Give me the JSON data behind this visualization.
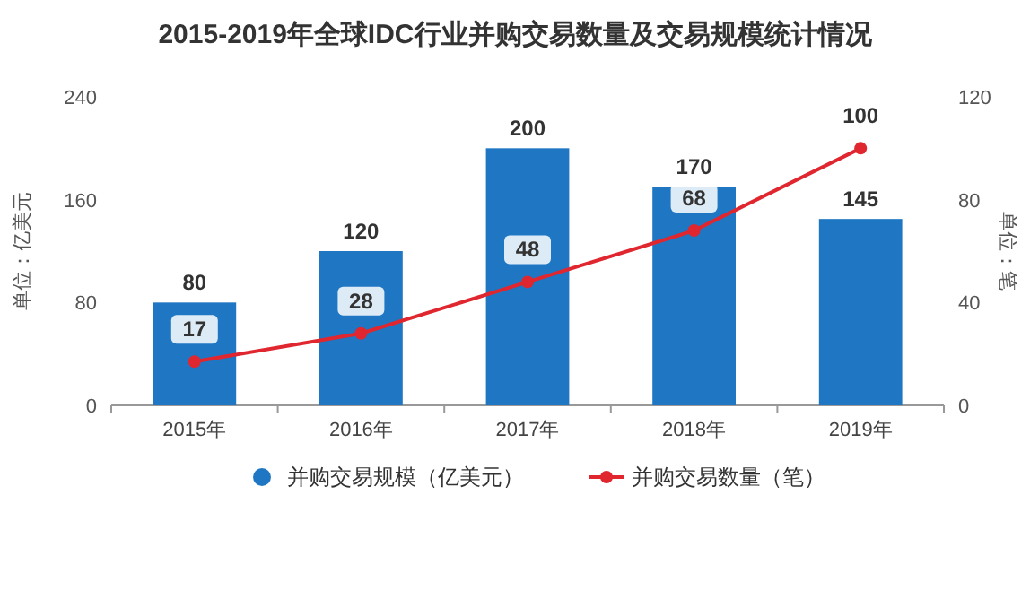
{
  "chart_data": {
    "type": "bar",
    "title": "2015-2019年全球IDC行业并购交易数量及交易规模统计情况",
    "categories": [
      "2015年",
      "2016年",
      "2017年",
      "2018年",
      "2019年"
    ],
    "series": [
      {
        "name": "并购交易规模（亿美元）",
        "color": "#1f77c4",
        "values": [
          80,
          120,
          200,
          170,
          145
        ]
      },
      {
        "name": "并购交易数量（笔）",
        "type": "line",
        "axis": "y2",
        "color": "#e0262e",
        "marker": "circle",
        "values": [
          17,
          28,
          48,
          68,
          100
        ]
      }
    ],
    "ylabel": "单位：亿美元",
    "y2label": "单位：笔",
    "ylim": [
      0,
      240
    ],
    "yticks": [
      0,
      80,
      160,
      240
    ],
    "y2lim": [
      0,
      120
    ],
    "y2ticks": [
      0,
      40,
      80,
      120
    ],
    "data_labels": true,
    "legend": "bottom",
    "grid": false
  }
}
